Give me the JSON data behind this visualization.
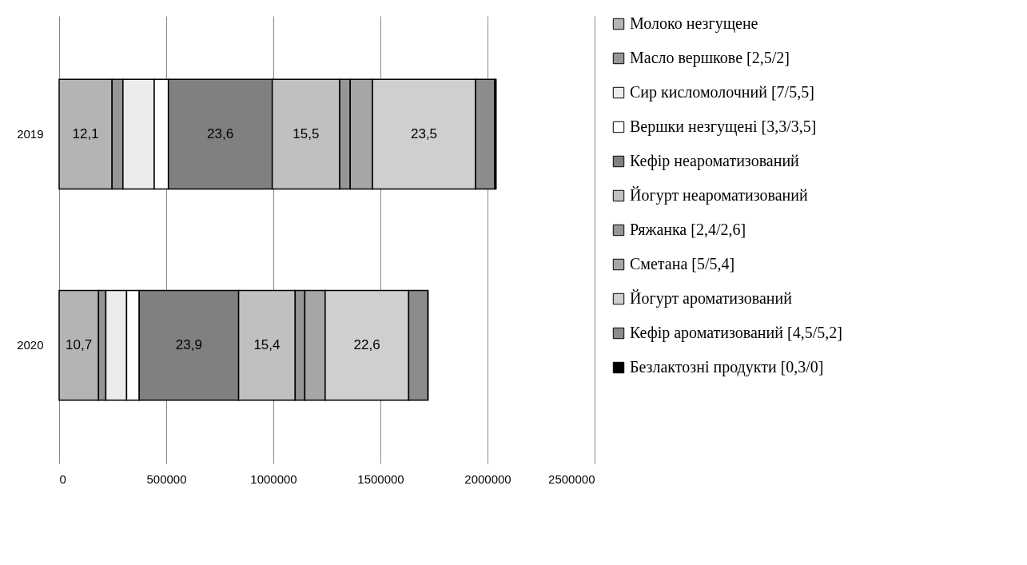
{
  "chart_data": {
    "type": "bar",
    "orientation": "horizontal",
    "stacked": true,
    "categories": [
      "2019",
      "2020"
    ],
    "series": [
      {
        "name": "Молоко незгущене",
        "color": "#b4b4b4",
        "values": [
          247000,
          184000
        ]
      },
      {
        "name": "Масло вершкове [2,5/2]",
        "color": "#969696",
        "values": [
          51000,
          34000
        ]
      },
      {
        "name": "Сир кисломолочний [7/5,5]",
        "color": "#ececec",
        "values": [
          146000,
          97000
        ]
      },
      {
        "name": "Вершки незгущені [3,3/3,5]",
        "color": "#ffffff",
        "values": [
          66000,
          59000
        ]
      },
      {
        "name": "Кефір неароматизований",
        "color": "#808080",
        "values": [
          485000,
          464000
        ]
      },
      {
        "name": "Йогурт неароматизований",
        "color": "#c0c0c0",
        "values": [
          315000,
          264000
        ]
      },
      {
        "name": "Ряжанка  [2,4/2,6]",
        "color": "#969696",
        "values": [
          49000,
          45000
        ]
      },
      {
        "name": "Сметана  [5/5,4]",
        "color": "#a6a6a6",
        "values": [
          104000,
          95000
        ]
      },
      {
        "name": "Йогурт ароматизований",
        "color": "#cfcfcf",
        "values": [
          481000,
          390000
        ]
      },
      {
        "name": "Кефір ароматизований [4,5/5,2]",
        "color": "#8c8c8c",
        "values": [
          90000,
          90000
        ]
      },
      {
        "name": "Безлактозні продукти [0,3/0]",
        "color": "#000000",
        "values": [
          6000,
          0
        ]
      }
    ],
    "xlim": [
      0,
      2500000
    ],
    "xticks": [
      0,
      500000,
      1000000,
      1500000,
      2000000,
      2500000
    ],
    "annotations": [
      {
        "text": "12,1",
        "x": 247000,
        "y": "2019"
      },
      {
        "text": "23,6",
        "x": 995000,
        "y": "2019"
      },
      {
        "text": "15,5",
        "x": 1310000,
        "y": "2019"
      },
      {
        "text": "23,5",
        "x": 1944000,
        "y": "2019"
      },
      {
        "text": "10,7",
        "x": 184000,
        "y": "2020"
      },
      {
        "text": "23,9",
        "x": 838000,
        "y": "2020"
      },
      {
        "text": "15,4",
        "x": 1102000,
        "y": "2020"
      },
      {
        "text": "22,6",
        "x": 1632000,
        "y": "2020"
      }
    ],
    "grid": "x",
    "legend": "right"
  }
}
